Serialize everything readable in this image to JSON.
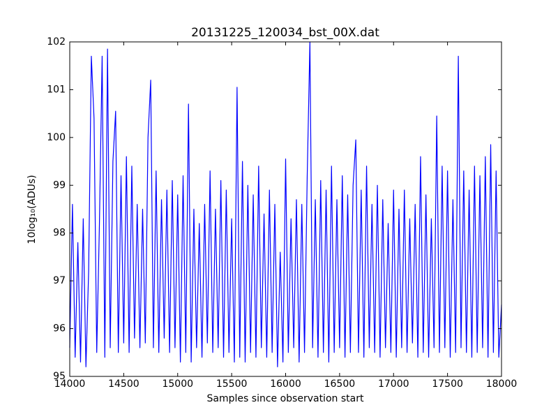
{
  "chart_data": {
    "type": "line",
    "title": "20131225_120034_bst_00X.dat",
    "xlabel": "Samples since observation start",
    "ylabel": "10log₁₀(ADUs)",
    "color": "#0000ff",
    "x": [
      14000,
      14025,
      14050,
      14075,
      14100,
      14125,
      14150,
      14175,
      14200,
      14225,
      14250,
      14275,
      14300,
      14325,
      14350,
      14375,
      14400,
      14425,
      14450,
      14475,
      14500,
      14525,
      14550,
      14575,
      14600,
      14625,
      14650,
      14675,
      14700,
      14725,
      14750,
      14775,
      14800,
      14825,
      14850,
      14875,
      14900,
      14925,
      14950,
      14975,
      15000,
      15025,
      15050,
      15075,
      15100,
      15125,
      15150,
      15175,
      15200,
      15225,
      15250,
      15275,
      15300,
      15325,
      15350,
      15375,
      15400,
      15425,
      15450,
      15475,
      15500,
      15525,
      15550,
      15575,
      15600,
      15625,
      15650,
      15675,
      15700,
      15725,
      15750,
      15775,
      15800,
      15825,
      15850,
      15875,
      15900,
      15925,
      15950,
      15975,
      16000,
      16025,
      16050,
      16075,
      16100,
      16125,
      16150,
      16175,
      16200,
      16225,
      16250,
      16275,
      16300,
      16325,
      16350,
      16375,
      16400,
      16425,
      16450,
      16475,
      16500,
      16525,
      16550,
      16575,
      16600,
      16625,
      16650,
      16675,
      16700,
      16725,
      16750,
      16775,
      16800,
      16825,
      16850,
      16875,
      16900,
      16925,
      16950,
      16975,
      17000,
      17025,
      17050,
      17075,
      17100,
      17125,
      17150,
      17175,
      17200,
      17225,
      17250,
      17275,
      17300,
      17325,
      17350,
      17375,
      17400,
      17425,
      17450,
      17475,
      17500,
      17525,
      17550,
      17575,
      17600,
      17625,
      17650,
      17675,
      17700,
      17725,
      17750,
      17775,
      17800,
      17825,
      17850,
      17875,
      17900,
      17925,
      17950,
      17975,
      18000
    ],
    "values": [
      95.6,
      98.6,
      95.4,
      97.8,
      95.3,
      98.3,
      95.2,
      97.2,
      101.7,
      100.4,
      95.5,
      98.2,
      101.7,
      95.4,
      101.85,
      95.6,
      99.5,
      100.55,
      95.5,
      99.2,
      95.7,
      99.6,
      95.5,
      99.4,
      95.8,
      98.6,
      95.6,
      98.5,
      95.7,
      100,
      101.2,
      95.6,
      99.3,
      95.5,
      98.7,
      95.8,
      98.9,
      95.5,
      99.1,
      95.6,
      98.8,
      95.3,
      99.2,
      95.5,
      100.7,
      95.3,
      98.5,
      95.6,
      98.2,
      95.4,
      98.6,
      95.7,
      99.3,
      95.5,
      98.5,
      95.6,
      99.1,
      95.4,
      98.9,
      95.5,
      98.3,
      95.3,
      101.05,
      95.4,
      99.5,
      95.3,
      99.0,
      95.5,
      98.8,
      95.4,
      99.4,
      95.6,
      98.4,
      95.4,
      98.9,
      95.5,
      98.6,
      95.2,
      97.6,
      95.3,
      99.55,
      95.5,
      98.3,
      95.6,
      98.7,
      95.3,
      98.6,
      95.5,
      99.2,
      102,
      95.6,
      98.7,
      95.4,
      99.1,
      95.5,
      98.9,
      95.3,
      99.4,
      95.5,
      98.7,
      95.6,
      99.2,
      95.4,
      98.8,
      95.5,
      99.0,
      99.95,
      95.5,
      98.9,
      95.4,
      99.4,
      95.6,
      98.6,
      95.5,
      99.0,
      95.4,
      98.7,
      95.6,
      98.2,
      95.5,
      98.9,
      95.4,
      98.5,
      95.6,
      98.9,
      95.5,
      98.3,
      95.7,
      98.6,
      95.4,
      99.6,
      95.5,
      98.8,
      95.4,
      98.3,
      95.6,
      100.45,
      95.5,
      99.4,
      95.6,
      99.3,
      95.4,
      98.7,
      95.5,
      101.7,
      95.6,
      99.3,
      95.5,
      98.9,
      95.4,
      99.4,
      95.5,
      99.2,
      95.6,
      99.6,
      95.4,
      99.85,
      95.5,
      99.3,
      95.4,
      96.5
    ],
    "xlim": [
      14000,
      18000
    ],
    "ylim": [
      95,
      102
    ],
    "xticks": [
      14000,
      14500,
      15000,
      15500,
      16000,
      16500,
      17000,
      17500,
      18000
    ],
    "yticks": [
      95,
      96,
      97,
      98,
      99,
      100,
      101,
      102
    ],
    "grid": false
  }
}
